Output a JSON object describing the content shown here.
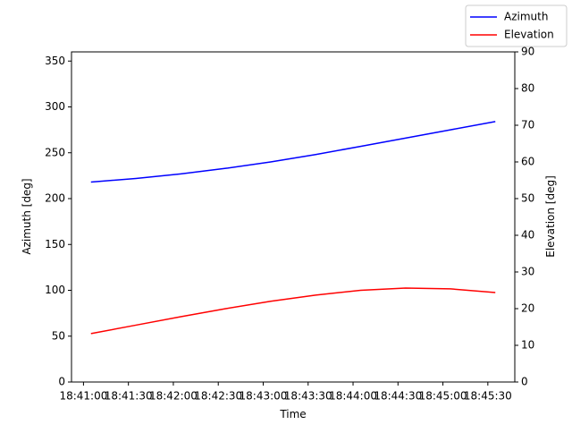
{
  "chart_data": {
    "type": "line",
    "x_label": "Time",
    "y_label": "Azimuth [deg]",
    "y2_label": "Elevation [deg]",
    "x": [
      "18:41:05",
      "18:41:35",
      "18:42:05",
      "18:42:35",
      "18:43:05",
      "18:43:35",
      "18:44:05",
      "18:44:35",
      "18:45:05",
      "18:45:35"
    ],
    "series": [
      {
        "name": "Azimuth",
        "color": "blue",
        "values": [
          218,
          222,
          227,
          233,
          240,
          248,
          257,
          266,
          275,
          284
        ]
      },
      {
        "name": "Elevation",
        "color": "red",
        "axis": "y2",
        "values": [
          13.2,
          15.5,
          17.8,
          20,
          22,
          23.7,
          25,
          25.6,
          25.4,
          24.4
        ]
      }
    ],
    "xlim": [
      "18:40:52",
      "18:45:48"
    ],
    "xticks": [
      "18:41:00",
      "18:41:30",
      "18:42:00",
      "18:42:30",
      "18:43:00",
      "18:43:30",
      "18:44:00",
      "18:44:30",
      "18:45:00",
      "18:45:30"
    ],
    "ylim": [
      0,
      360
    ],
    "yticks": [
      0,
      50,
      100,
      150,
      200,
      250,
      300,
      350
    ],
    "y2lim": [
      0,
      90
    ],
    "y2ticks": [
      0,
      10,
      20,
      30,
      40,
      50,
      60,
      70,
      80,
      90
    ],
    "legend": "upper right"
  }
}
